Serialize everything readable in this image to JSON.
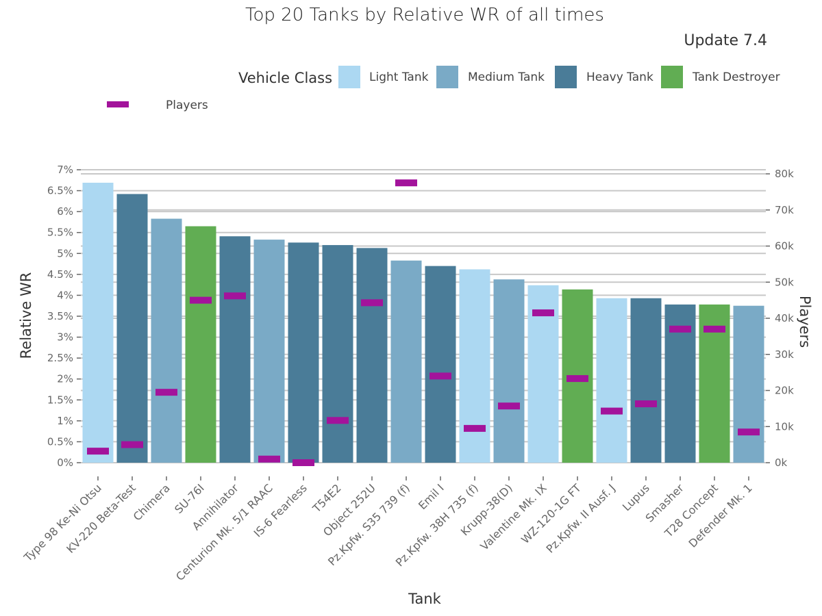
{
  "chart_data": {
    "type": "bar",
    "title": "Top 20 Tanks by Relative WR of all times",
    "subtitle": "Update 7.4",
    "xlabel": "Tank",
    "ylabel": "Relative WR",
    "y2label": "Players",
    "ylim": [
      0,
      7
    ],
    "y_ticks": [
      "0%",
      "0.5%",
      "1%",
      "1.5%",
      "2%",
      "2.5%",
      "3%",
      "3.5%",
      "4%",
      "4.5%",
      "5%",
      "5.5%",
      "6%",
      "6.5%",
      "7%"
    ],
    "y2lim": [
      0,
      80000
    ],
    "y2_ticks": [
      "0k",
      "10k",
      "20k",
      "30k",
      "40k",
      "50k",
      "60k",
      "70k",
      "80k"
    ],
    "legend_title": "Vehicle Class",
    "classes": [
      {
        "name": "Light Tank",
        "color": "#acd8f2"
      },
      {
        "name": "Medium Tank",
        "color": "#7aaac6"
      },
      {
        "name": "Heavy Tank",
        "color": "#4a7c98"
      },
      {
        "name": "Tank Destroyer",
        "color": "#61ad53"
      }
    ],
    "players_series": {
      "name": "Players",
      "color": "#a3139b"
    },
    "categories": [
      "Type 98 Ke-Ni Otsu",
      "KV-220 Beta-Test",
      "Chimera",
      "SU-76I",
      "Annihilator",
      "Centurion Mk. 5/1 RAAC",
      "IS-6 Fearless",
      "T54E2",
      "Object 252U",
      "Pz.Kpfw. S35 739 (f)",
      "Emil I",
      "Pz.Kpfw. 38H 735 (f)",
      "Krupp-38(D)",
      "Valentine Mk. IX",
      "WZ-120-1G FT",
      "Pz.Kpfw. II Ausf. J",
      "Lupus",
      "Smasher",
      "T28 Concept",
      "Defender Mk. 1"
    ],
    "class_of": [
      "Light Tank",
      "Heavy Tank",
      "Medium Tank",
      "Tank Destroyer",
      "Heavy Tank",
      "Medium Tank",
      "Heavy Tank",
      "Heavy Tank",
      "Heavy Tank",
      "Medium Tank",
      "Heavy Tank",
      "Light Tank",
      "Medium Tank",
      "Light Tank",
      "Tank Destroyer",
      "Light Tank",
      "Heavy Tank",
      "Heavy Tank",
      "Tank Destroyer",
      "Medium Tank"
    ],
    "series": [
      {
        "name": "Relative WR",
        "values": [
          6.69,
          6.42,
          5.83,
          5.65,
          5.41,
          5.33,
          5.26,
          5.2,
          5.13,
          4.83,
          4.7,
          4.62,
          4.38,
          4.24,
          4.14,
          3.93,
          3.93,
          3.78,
          3.78,
          3.75
        ]
      },
      {
        "name": "Players",
        "values": [
          3200,
          5000,
          19500,
          45000,
          46200,
          1000,
          0,
          11700,
          44300,
          77500,
          24000,
          9500,
          15700,
          41500,
          23300,
          14300,
          16300,
          37000,
          37000,
          8500
        ]
      }
    ]
  }
}
